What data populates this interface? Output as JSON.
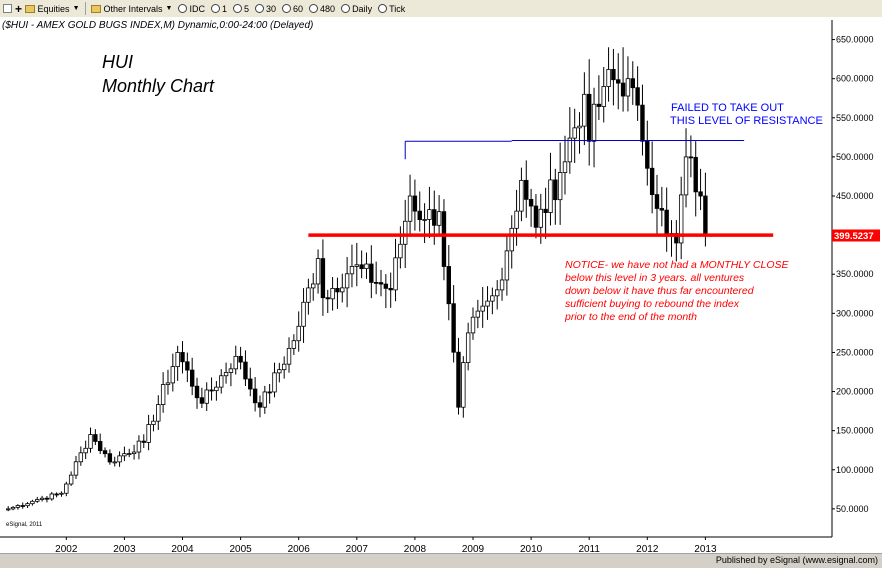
{
  "toolbar": {
    "items": [
      "Equities",
      "Other Intervals",
      "IDC",
      "1",
      "5",
      "30",
      "60",
      "480",
      "Daily",
      "Tick"
    ]
  },
  "header": "($HUI - AMEX GOLD BUGS INDEX,M) Dynamic,0:00-24:00 (Delayed)",
  "status_text": "Published by eSignal (www.esignal.com)",
  "watermark": "eSignal, 2011",
  "chart_data": {
    "type": "candlestick",
    "title": "HUI\nMonthly Chart",
    "symbol": "$HUI",
    "interval": "Monthly",
    "x_tick_labels": [
      "2002",
      "2003",
      "2004",
      "2005",
      "2006",
      "2007",
      "2008",
      "2009",
      "2010",
      "2011",
      "2012",
      "2013"
    ],
    "y_tick_labels": [
      "50.0000",
      "100.0000",
      "150.0000",
      "200.0000",
      "250.0000",
      "300.0000",
      "350.0000",
      "400.0000",
      "450.0000",
      "500.0000",
      "550.0000",
      "600.0000",
      "650.0000"
    ],
    "ylim": [
      0,
      665
    ],
    "last_price_label": "399.5237",
    "last_price": 399.52,
    "colors": {
      "up": "#ffffff",
      "down": "#000000",
      "support": "#ff0000",
      "resistance": "#0000cc",
      "note": "#ff0000",
      "resistance_note": "#0000ff",
      "last_price_box": "#ff0000"
    },
    "support_line": {
      "value": 400,
      "from": "2006-03",
      "to": "2014-03"
    },
    "resistance_segments": [
      {
        "value": 520,
        "from": "2007-11",
        "to": "2009-09"
      },
      {
        "value": 521,
        "from": "2009-09",
        "to": "2013-09"
      }
    ],
    "annotations": [
      {
        "text": "FAILED TO TAKE OUT",
        "color": "#0000ff"
      },
      {
        "text": "THIS LEVEL OF RESISTANCE",
        "color": "#0000ff"
      },
      {
        "text": "NOTICE- we have not had a MONTHLY CLOSE",
        "color": "#ff0000"
      },
      {
        "text": "below this level in 3 years. all ventures",
        "color": "#ff0000"
      },
      {
        "text": "down below it have thus far encountered",
        "color": "#ff0000"
      },
      {
        "text": "sufficient buying to rebound the index",
        "color": "#ff0000"
      },
      {
        "text": "prior to the end of the month",
        "color": "#ff0000"
      }
    ],
    "anchors": [
      {
        "date": "2001-01",
        "close": 50
      },
      {
        "date": "2001-07",
        "close": 62
      },
      {
        "date": "2001-12",
        "close": 70
      },
      {
        "date": "2002-06",
        "close": 145
      },
      {
        "date": "2002-10",
        "close": 110
      },
      {
        "date": "2003-05",
        "close": 135
      },
      {
        "date": "2003-12",
        "close": 250
      },
      {
        "date": "2004-05",
        "close": 185
      },
      {
        "date": "2004-12",
        "close": 245
      },
      {
        "date": "2005-05",
        "close": 180
      },
      {
        "date": "2005-12",
        "close": 265
      },
      {
        "date": "2006-05",
        "close": 370
      },
      {
        "date": "2006-06",
        "close": 320
      },
      {
        "date": "2006-12",
        "close": 360
      },
      {
        "date": "2007-08",
        "close": 330
      },
      {
        "date": "2007-12",
        "close": 450
      },
      {
        "date": "2008-03",
        "close": 420
      },
      {
        "date": "2008-06",
        "close": 430
      },
      {
        "date": "2008-10",
        "close": 180
      },
      {
        "date": "2008-12",
        "close": 275
      },
      {
        "date": "2009-06",
        "close": 330
      },
      {
        "date": "2009-11",
        "close": 470
      },
      {
        "date": "2010-02",
        "close": 410
      },
      {
        "date": "2010-07",
        "close": 480
      },
      {
        "date": "2010-12",
        "close": 580
      },
      {
        "date": "2011-01",
        "close": 520
      },
      {
        "date": "2011-04",
        "close": 590
      },
      {
        "date": "2011-09",
        "close": 600
      },
      {
        "date": "2011-12",
        "close": 520
      },
      {
        "date": "2012-05",
        "close": 400
      },
      {
        "date": "2012-07",
        "close": 390
      },
      {
        "date": "2012-09",
        "close": 500
      },
      {
        "date": "2012-12",
        "close": 450
      },
      {
        "date": "2013-01",
        "close": 399.52
      }
    ]
  }
}
